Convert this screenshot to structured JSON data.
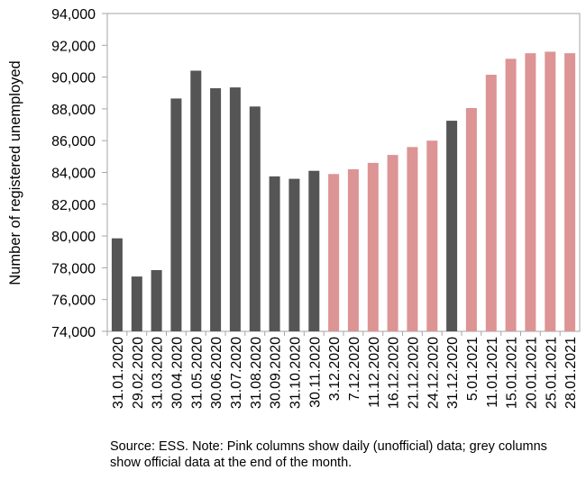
{
  "chart_data": {
    "type": "bar",
    "ylabel": "Number of registered unemployed",
    "ylim": [
      74000,
      94000
    ],
    "yticks": [
      74000,
      76000,
      78000,
      80000,
      82000,
      84000,
      86000,
      88000,
      90000,
      92000,
      94000
    ],
    "ytick_labels": [
      "74,000",
      "76,000",
      "78,000",
      "80,000",
      "82,000",
      "84,000",
      "86,000",
      "88,000",
      "90,000",
      "92,000",
      "94,000"
    ],
    "grid": false,
    "colors": {
      "official": "#555555",
      "daily": "#dd9494",
      "axis": "#a6a6a6"
    },
    "categories": [
      "31.01.2020",
      "29.02.2020",
      "31.03.2020",
      "30.04.2020",
      "31.05.2020",
      "30.06.2020",
      "31.07.2020",
      "31.08.2020",
      "30.09.2020",
      "31.10.2020",
      "30.11.2020",
      "3.12.2020",
      "7.12.2020",
      "11.12.2020",
      "16.12.2020",
      "21.12.2020",
      "24.12.2020",
      "31.12.2020",
      "5.01.2021",
      "11.01.2021",
      "15.01.2021",
      "20.01.2021",
      "25.01.2021",
      "28.01.2021"
    ],
    "values": [
      79850,
      77450,
      77850,
      88650,
      90400,
      89300,
      89350,
      88150,
      83750,
      83600,
      84100,
      83900,
      84200,
      84600,
      85100,
      85600,
      86000,
      87250,
      88050,
      90150,
      91150,
      91500,
      91600,
      91500
    ],
    "kinds": [
      "official",
      "official",
      "official",
      "official",
      "official",
      "official",
      "official",
      "official",
      "official",
      "official",
      "official",
      "daily",
      "daily",
      "daily",
      "daily",
      "daily",
      "daily",
      "official",
      "daily",
      "daily",
      "daily",
      "daily",
      "daily",
      "daily"
    ]
  },
  "note": "Source: ESS. Note: Pink columns show daily (unofficial) data; grey columns show official data at the end of the month."
}
